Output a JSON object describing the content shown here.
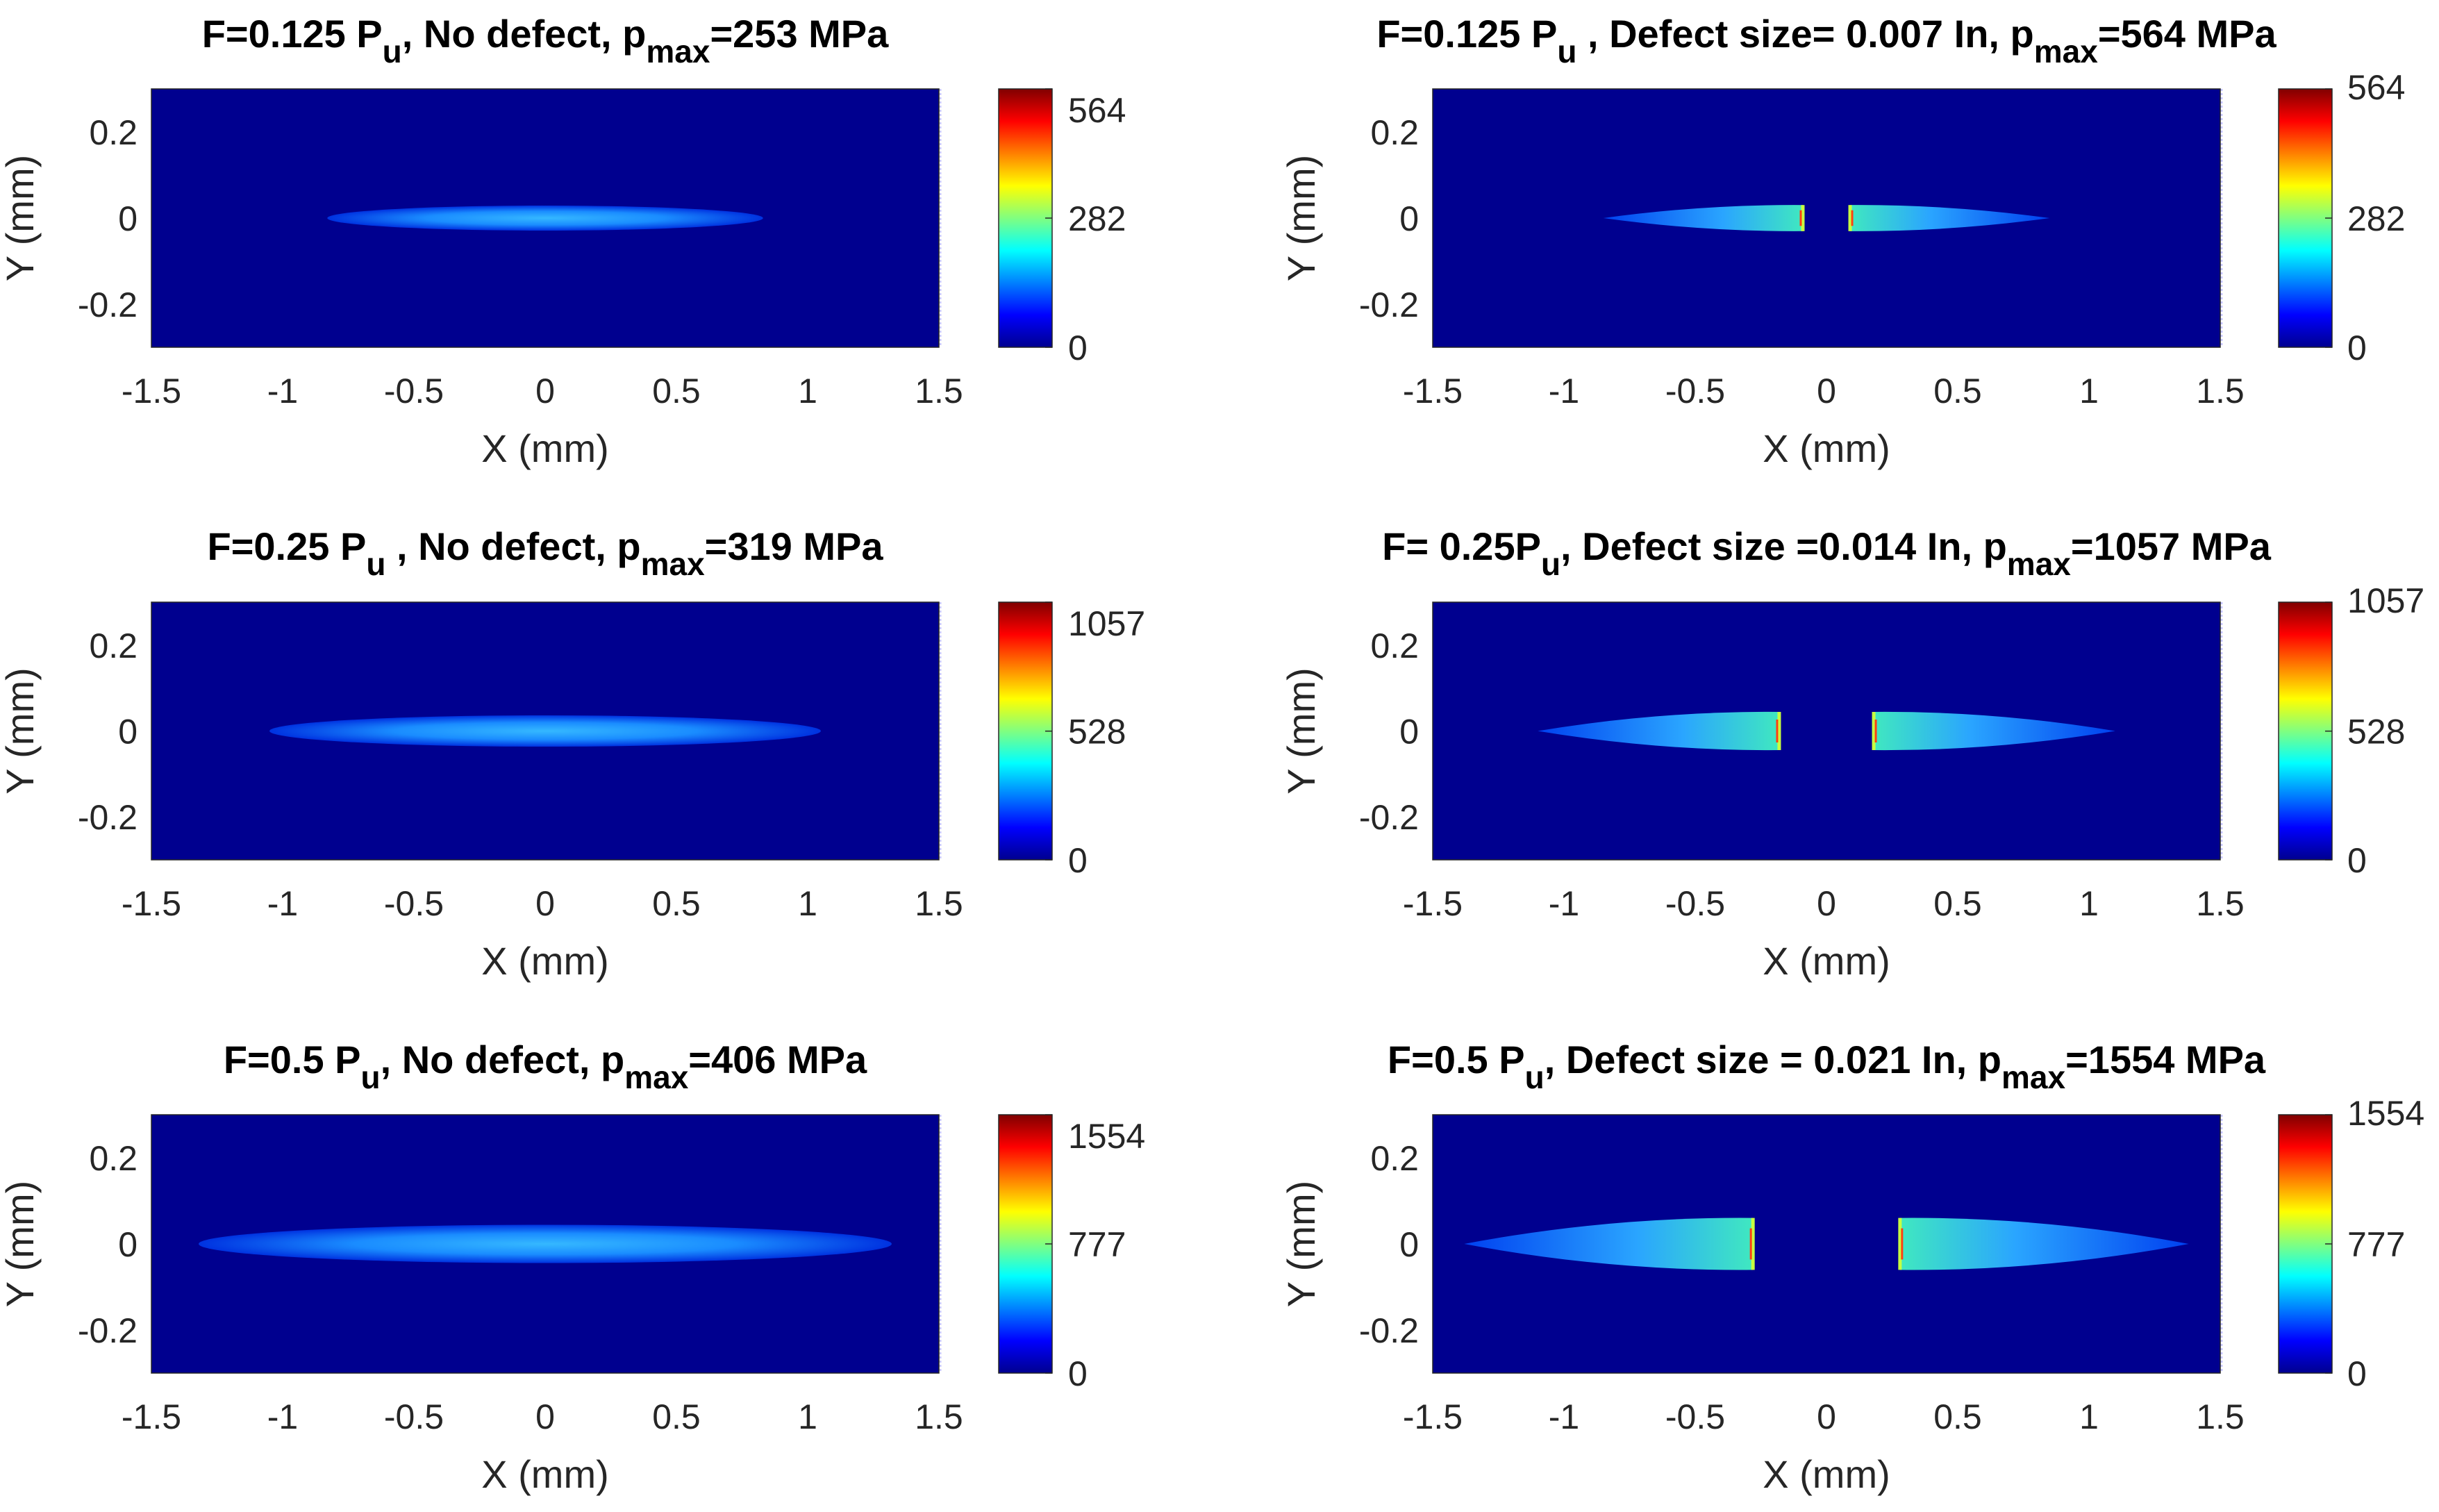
{
  "figure": {
    "colormap": "jet",
    "background_color": "#00008f",
    "panels": [
      {
        "title": {
          "prefix": "F=0.125 P",
          "sub1": "u",
          "mid": ", No defect, p",
          "sub2": "max",
          "suffix": "=253 MPa"
        },
        "xlabel": "X (mm)",
        "ylabel": "Y (mm)",
        "x_ticks": [
          "-1.5",
          "-1",
          "-0.5",
          "0",
          "0.5",
          "1",
          "1.5"
        ],
        "y_ticks": [
          "0.2",
          "0",
          "-0.2"
        ],
        "colorbar_ticks": [
          "564",
          "282",
          "0"
        ],
        "colorbar_ticks_position": "inside"
      },
      {
        "title": {
          "prefix": "F=0.125 P",
          "sub1": "u",
          "mid": " , Defect size= 0.007 In, p",
          "sub2": "max",
          "suffix": "=564 MPa"
        },
        "xlabel": "X (mm)",
        "ylabel": "Y (mm)",
        "x_ticks": [
          "-1.5",
          "-1",
          "-0.5",
          "0",
          "0.5",
          "1",
          "1.5"
        ],
        "y_ticks": [
          "0.2",
          "0",
          "-0.2"
        ],
        "colorbar_ticks": [
          "564",
          "282",
          "0"
        ],
        "colorbar_ticks_position": "edge"
      },
      {
        "title": {
          "prefix": "F=0.25 P",
          "sub1": "u",
          "mid": " , No defect, p",
          "sub2": "max",
          "suffix": "=319 MPa"
        },
        "xlabel": "X (mm)",
        "ylabel": "Y (mm)",
        "x_ticks": [
          "-1.5",
          "-1",
          "-0.5",
          "0",
          "0.5",
          "1",
          "1.5"
        ],
        "y_ticks": [
          "0.2",
          "0",
          "-0.2"
        ],
        "colorbar_ticks": [
          "1057",
          "528",
          "0"
        ],
        "colorbar_ticks_position": "inside"
      },
      {
        "title": {
          "prefix": "F= 0.25P",
          "sub1": "u",
          "mid": ", Defect size =0.014 In, p",
          "sub2": "max",
          "suffix": "=1057 MPa"
        },
        "xlabel": "X (mm)",
        "ylabel": "Y (mm)",
        "x_ticks": [
          "-1.5",
          "-1",
          "-0.5",
          "0",
          "0.5",
          "1",
          "1.5"
        ],
        "y_ticks": [
          "0.2",
          "0",
          "-0.2"
        ],
        "colorbar_ticks": [
          "1057",
          "528",
          "0"
        ],
        "colorbar_ticks_position": "edge"
      },
      {
        "title": {
          "prefix": "F=0.5 P",
          "sub1": "u",
          "mid": ", No defect, p",
          "sub2": "max",
          "suffix": "=406 MPa"
        },
        "xlabel": "X (mm)",
        "ylabel": "Y (mm)",
        "x_ticks": [
          "-1.5",
          "-1",
          "-0.5",
          "0",
          "0.5",
          "1",
          "1.5"
        ],
        "y_ticks": [
          "0.2",
          "0",
          "-0.2"
        ],
        "colorbar_ticks": [
          "1554",
          "777",
          "0"
        ],
        "colorbar_ticks_position": "inside"
      },
      {
        "title": {
          "prefix": "F=0.5 P",
          "sub1": "u",
          "mid": ", Defect size = 0.021 In, p",
          "sub2": "max",
          "suffix": "=1554 MPa"
        },
        "xlabel": "X (mm)",
        "ylabel": "Y (mm)",
        "x_ticks": [
          "-1.5",
          "-1",
          "-0.5",
          "0",
          "0.5",
          "1",
          "1.5"
        ],
        "y_ticks": [
          "0.2",
          "0",
          "-0.2"
        ],
        "colorbar_ticks": [
          "1554",
          "777",
          "0"
        ],
        "colorbar_ticks_position": "edge"
      }
    ]
  },
  "chart_data": [
    {
      "type": "heatmap",
      "title": "F=0.125 Pu, No defect, pmax=253 MPa",
      "xlabel": "X (mm)",
      "ylabel": "Y (mm)",
      "xlim": [
        -1.5,
        1.5
      ],
      "ylim": [
        -0.3,
        0.3
      ],
      "clim": [
        0,
        564
      ],
      "pmax": 253,
      "defect": false,
      "defect_size_in": 0,
      "contact_half_width_mm": 0.83,
      "contact_gap_half_width_mm": 0
    },
    {
      "type": "heatmap",
      "title": "F=0.125 Pu , Defect size= 0.007 In, pmax=564 MPa",
      "xlabel": "X (mm)",
      "ylabel": "Y (mm)",
      "xlim": [
        -1.5,
        1.5
      ],
      "ylim": [
        -0.3,
        0.3
      ],
      "clim": [
        0,
        564
      ],
      "pmax": 564,
      "defect": true,
      "defect_size_in": 0.007,
      "contact_half_width_mm": 0.85,
      "contact_gap_half_width_mm": 0.09
    },
    {
      "type": "heatmap",
      "title": "F=0.25 Pu , No defect, pmax=319 MPa",
      "xlabel": "X (mm)",
      "ylabel": "Y (mm)",
      "xlim": [
        -1.5,
        1.5
      ],
      "ylim": [
        -0.3,
        0.3
      ],
      "clim": [
        0,
        1057
      ],
      "pmax": 319,
      "defect": false,
      "defect_size_in": 0,
      "contact_half_width_mm": 1.05,
      "contact_gap_half_width_mm": 0
    },
    {
      "type": "heatmap",
      "title": "F= 0.25Pu, Defect size =0.014 In, pmax=1057 MPa",
      "xlabel": "X (mm)",
      "ylabel": "Y (mm)",
      "xlim": [
        -1.5,
        1.5
      ],
      "ylim": [
        -0.3,
        0.3
      ],
      "clim": [
        0,
        1057
      ],
      "pmax": 1057,
      "defect": true,
      "defect_size_in": 0.014,
      "contact_half_width_mm": 1.1,
      "contact_gap_half_width_mm": 0.18
    },
    {
      "type": "heatmap",
      "title": "F=0.5 Pu, No defect, pmax=406 MPa",
      "xlabel": "X (mm)",
      "ylabel": "Y (mm)",
      "xlim": [
        -1.5,
        1.5
      ],
      "ylim": [
        -0.3,
        0.3
      ],
      "clim": [
        0,
        1554
      ],
      "pmax": 406,
      "defect": false,
      "defect_size_in": 0,
      "contact_half_width_mm": 1.32,
      "contact_gap_half_width_mm": 0
    },
    {
      "type": "heatmap",
      "title": "F=0.5 Pu, Defect size = 0.021 In, pmax=1554 MPa",
      "xlabel": "X (mm)",
      "ylabel": "Y (mm)",
      "xlim": [
        -1.5,
        1.5
      ],
      "ylim": [
        -0.3,
        0.3
      ],
      "clim": [
        0,
        1554
      ],
      "pmax": 1554,
      "defect": true,
      "defect_size_in": 0.021,
      "contact_half_width_mm": 1.38,
      "contact_gap_half_width_mm": 0.28
    }
  ]
}
